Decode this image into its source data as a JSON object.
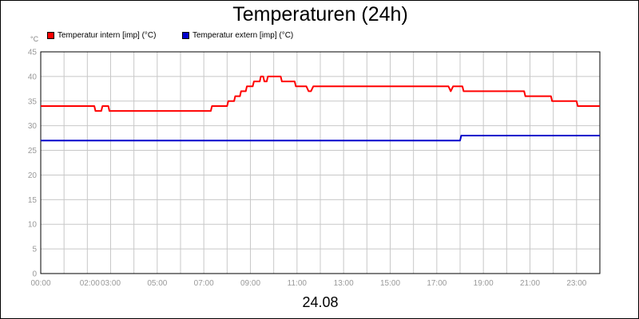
{
  "chart_data": {
    "type": "line",
    "title": "Temperaturen (24h)",
    "unit_label": "°C",
    "date_label": "24.08",
    "ylim": [
      0,
      45
    ],
    "yticks": [
      0,
      5,
      10,
      15,
      20,
      25,
      30,
      35,
      40,
      45
    ],
    "xlim": [
      0,
      24
    ],
    "xtick_labels": [
      {
        "h": 0,
        "label": "00:00"
      },
      {
        "h": 2.1,
        "label": "02:00"
      },
      {
        "h": 3.0,
        "label": "03:00"
      },
      {
        "h": 5.0,
        "label": "05:00"
      },
      {
        "h": 7.0,
        "label": "07:00"
      },
      {
        "h": 9.0,
        "label": "09:00"
      },
      {
        "h": 11.0,
        "label": "11:00"
      },
      {
        "h": 13.0,
        "label": "13:00"
      },
      {
        "h": 15.0,
        "label": "15:00"
      },
      {
        "h": 17.0,
        "label": "17:00"
      },
      {
        "h": 19.0,
        "label": "19:00"
      },
      {
        "h": 21.0,
        "label": "21:00"
      },
      {
        "h": 23.0,
        "label": "23:00"
      }
    ],
    "grid": true,
    "legend_position": "top-left",
    "series": [
      {
        "name": "Temperatur intern [imp] (°C)",
        "color": "#ff0000",
        "points": [
          [
            0,
            34
          ],
          [
            2.3,
            34
          ],
          [
            2.35,
            33
          ],
          [
            2.6,
            33
          ],
          [
            2.65,
            34
          ],
          [
            2.9,
            34
          ],
          [
            2.95,
            33
          ],
          [
            7.3,
            33
          ],
          [
            7.35,
            34
          ],
          [
            8.0,
            34
          ],
          [
            8.05,
            35
          ],
          [
            8.3,
            35
          ],
          [
            8.35,
            36
          ],
          [
            8.55,
            36
          ],
          [
            8.6,
            37
          ],
          [
            8.8,
            37
          ],
          [
            8.85,
            38
          ],
          [
            9.1,
            38
          ],
          [
            9.15,
            39
          ],
          [
            9.4,
            39
          ],
          [
            9.45,
            40
          ],
          [
            9.55,
            40
          ],
          [
            9.6,
            39
          ],
          [
            9.7,
            39
          ],
          [
            9.75,
            40
          ],
          [
            10.3,
            40
          ],
          [
            10.35,
            39
          ],
          [
            10.9,
            39
          ],
          [
            10.95,
            38
          ],
          [
            11.4,
            38
          ],
          [
            11.5,
            37
          ],
          [
            11.6,
            37
          ],
          [
            11.7,
            38
          ],
          [
            17.5,
            38
          ],
          [
            17.6,
            37
          ],
          [
            17.7,
            38
          ],
          [
            18.1,
            38
          ],
          [
            18.15,
            37
          ],
          [
            20.75,
            37
          ],
          [
            20.8,
            36
          ],
          [
            21.9,
            36
          ],
          [
            21.95,
            35
          ],
          [
            23.0,
            35
          ],
          [
            23.05,
            34
          ],
          [
            24,
            34
          ]
        ]
      },
      {
        "name": "Temperatur extern [imp] (°C)",
        "color": "#0000cc",
        "points": [
          [
            0,
            27
          ],
          [
            18.0,
            27
          ],
          [
            18.05,
            28
          ],
          [
            24,
            28
          ]
        ]
      }
    ]
  }
}
